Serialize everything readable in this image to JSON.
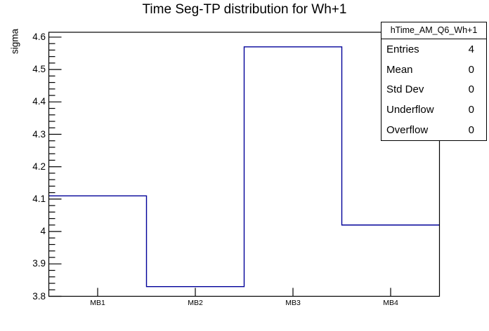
{
  "title": "Time Seg-TP distribution for Wh+1",
  "stats_box": {
    "header": "hTime_AM_Q6_Wh+1",
    "rows": [
      {
        "label": "Entries",
        "value": "4"
      },
      {
        "label": "Mean",
        "value": "0"
      },
      {
        "label": "Std Dev",
        "value": "0"
      },
      {
        "label": "Underflow",
        "value": "0"
      },
      {
        "label": "Overflow",
        "value": "0"
      }
    ]
  },
  "chart_data": {
    "type": "bar",
    "style": "root-step-histogram-outline",
    "title": "Time Seg-TP distribution for Wh+1",
    "categories": [
      "MB1",
      "MB2",
      "MB3",
      "MB4"
    ],
    "values": [
      4.11,
      3.83,
      4.57,
      4.02
    ],
    "xlabel": "",
    "ylabel": "sigma",
    "ylim": [
      3.8,
      4.615
    ],
    "yticks": [
      3.8,
      3.9,
      4,
      4.1,
      4.2,
      4.3,
      4.4,
      4.5,
      4.6
    ],
    "ytick_labels": [
      "3.8",
      "3.9",
      "4",
      "4.1",
      "4.2",
      "4.3",
      "4.4",
      "4.5",
      "4.6"
    ],
    "minor_tick_step": 0.02,
    "grid": false,
    "legend": "none"
  },
  "colors": {
    "histogram_line": "#000099",
    "frame": "#000000",
    "background": "#ffffff"
  }
}
